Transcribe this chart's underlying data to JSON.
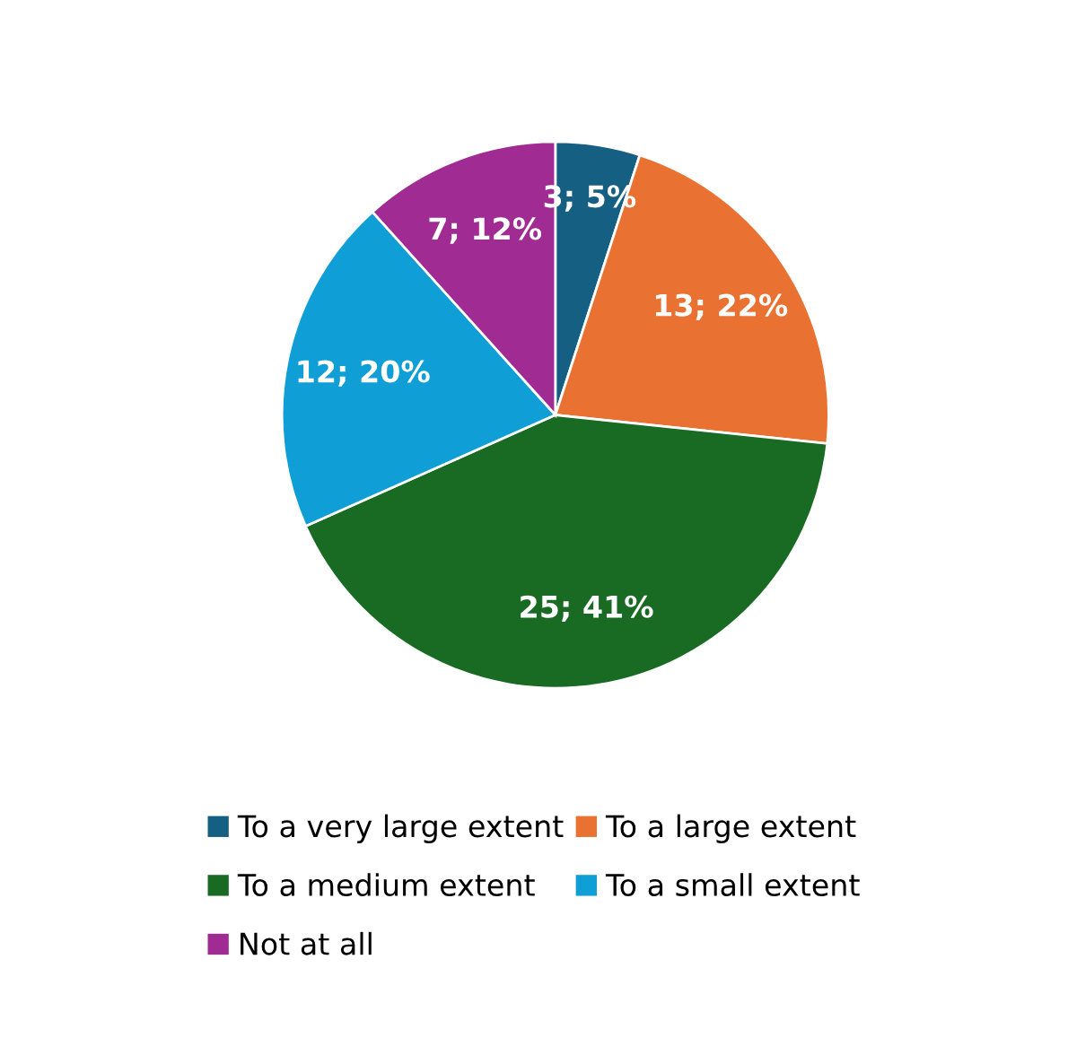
{
  "chart_data": {
    "type": "pie",
    "categories": [
      "To a very large extent",
      "To a large extent",
      "To a medium extent",
      "To a small extent",
      "Not at all"
    ],
    "values": [
      3,
      13,
      25,
      12,
      7
    ],
    "colors": [
      "#156082",
      "#e97132",
      "#196b24",
      "#0f9ed5",
      "#a02b93"
    ],
    "value_labels": [
      "3; 5%",
      "13; 22%",
      "25; 41%",
      "12; 20%",
      "7; 12%"
    ],
    "legend": "bottom"
  }
}
